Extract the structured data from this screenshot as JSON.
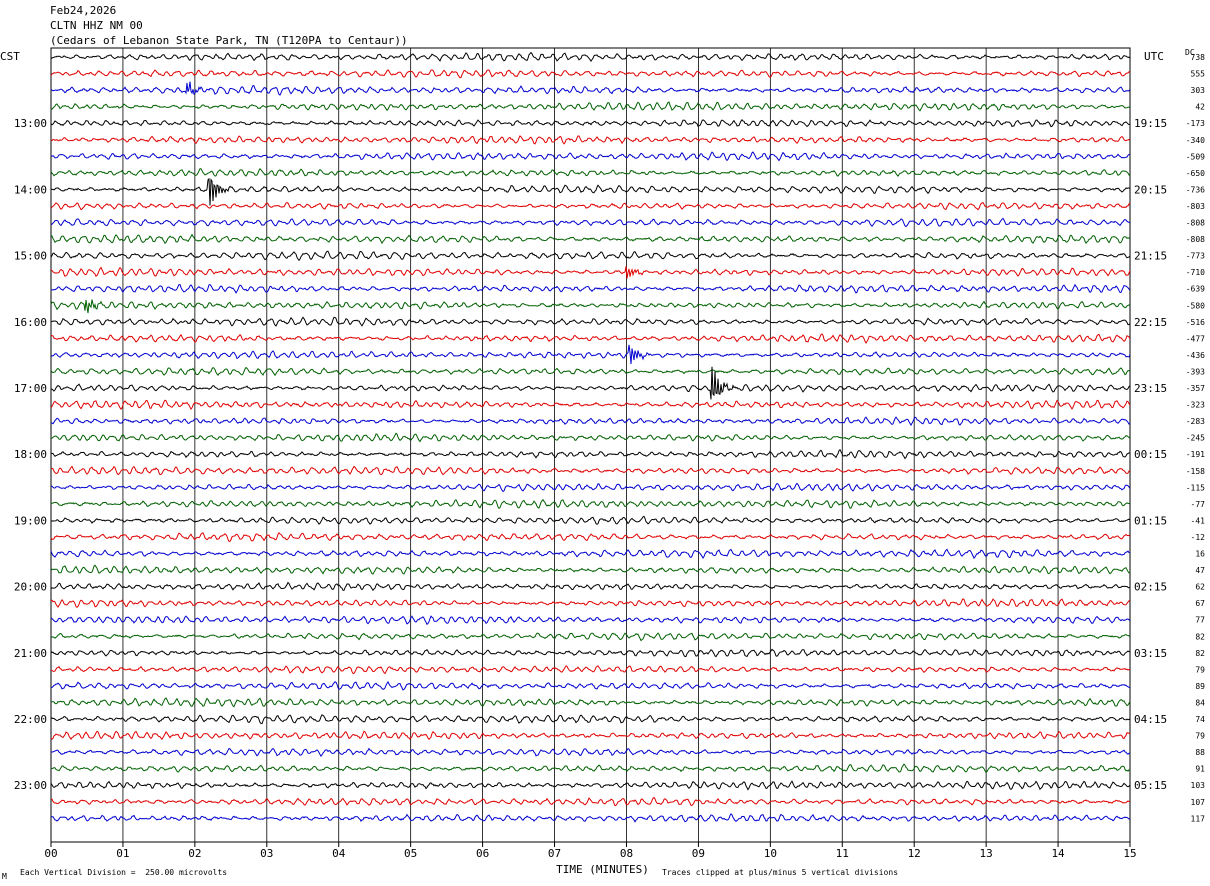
{
  "header": {
    "date": "Feb24,2026",
    "station": "CLTN HHZ NM 00",
    "location": "(Cedars of Lebanon State Park, TN (T120PA to Centaur))"
  },
  "labels": {
    "left_tz": "CST",
    "right_tz": "UTC",
    "dc_header": "DC"
  },
  "footer": {
    "scale_note": "Each Vertical Division =  250.00 microvolts",
    "clip_note": "Traces clipped at plus/minus 5 vertical divisions",
    "corner_mark": "M"
  },
  "chart_data": {
    "type": "line",
    "title": "",
    "xlabel": "TIME (MINUTES)",
    "xlim": [
      0,
      15
    ],
    "x_ticks": [
      "00",
      "01",
      "02",
      "03",
      "04",
      "05",
      "06",
      "07",
      "08",
      "09",
      "10",
      "11",
      "12",
      "13",
      "14",
      "15"
    ],
    "row_minutes": 15,
    "trace_colors": [
      "#000000",
      "#e00000",
      "#0000d0",
      "#006000"
    ],
    "left_time_labels": [
      {
        "row": 4,
        "text": "13:00"
      },
      {
        "row": 8,
        "text": "14:00"
      },
      {
        "row": 12,
        "text": "15:00"
      },
      {
        "row": 16,
        "text": "16:00"
      },
      {
        "row": 20,
        "text": "17:00"
      },
      {
        "row": 24,
        "text": "18:00"
      },
      {
        "row": 28,
        "text": "19:00"
      },
      {
        "row": 32,
        "text": "20:00"
      },
      {
        "row": 36,
        "text": "21:00"
      },
      {
        "row": 40,
        "text": "22:00"
      },
      {
        "row": 44,
        "text": "23:00"
      }
    ],
    "right_time_labels": [
      {
        "row": 4,
        "text": "19:15"
      },
      {
        "row": 8,
        "text": "20:15"
      },
      {
        "row": 12,
        "text": "21:15"
      },
      {
        "row": 16,
        "text": "22:15"
      },
      {
        "row": 20,
        "text": "23:15"
      },
      {
        "row": 24,
        "text": "00:15"
      },
      {
        "row": 28,
        "text": "01:15"
      },
      {
        "row": 32,
        "text": "02:15"
      },
      {
        "row": 36,
        "text": "03:15"
      },
      {
        "row": 40,
        "text": "04:15"
      },
      {
        "row": 44,
        "text": "05:15"
      }
    ],
    "dc_offsets": [
      "738",
      "555",
      "303",
      "42",
      "-173",
      "-340",
      "-509",
      "-650",
      "-736",
      "-803",
      "-808",
      "-808",
      "-773",
      "-710",
      "-639",
      "-580",
      "-516",
      "-477",
      "-436",
      "-393",
      "-357",
      "-323",
      "-283",
      "-245",
      "-191",
      "-158",
      "-115",
      "-77",
      "-41",
      "-12",
      "16",
      "47",
      "62",
      "67",
      "77",
      "82",
      "82",
      "79",
      "89",
      "84",
      "74",
      "79",
      "88",
      "91",
      "103",
      "107",
      "117"
    ],
    "events": [
      {
        "row": 8,
        "minute": 2.2,
        "amplitude": "large"
      },
      {
        "row": 2,
        "minute": 1.9,
        "amplitude": "small"
      },
      {
        "row": 15,
        "minute": 0.5,
        "amplitude": "small"
      },
      {
        "row": 18,
        "minute": 8.05,
        "amplitude": "medium"
      },
      {
        "row": 20,
        "minute": 9.2,
        "amplitude": "large"
      },
      {
        "row": 13,
        "minute": 8.0,
        "amplitude": "small"
      }
    ]
  }
}
